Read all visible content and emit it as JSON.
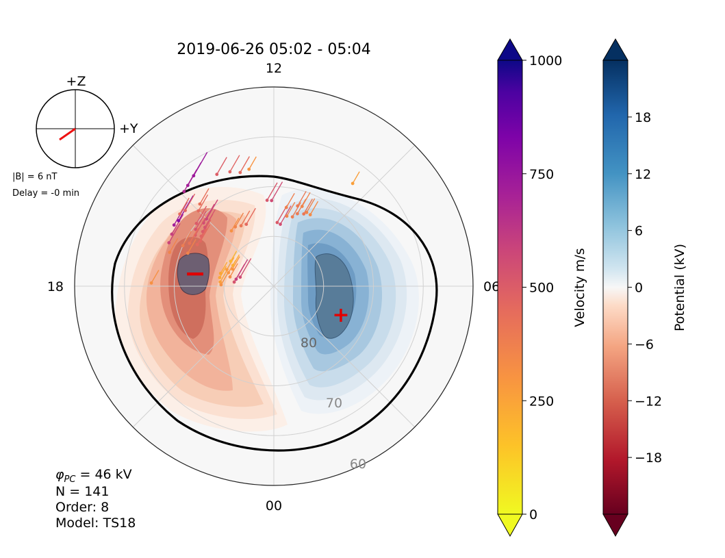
{
  "chart_data": {
    "type": "polar-convection-map",
    "title": "2019-06-26 05:02 - 05:04",
    "mlt_labels": {
      "top": "12",
      "left": "18",
      "right": "06",
      "bottom": "00"
    },
    "latitude_labels": [
      "80",
      "70",
      "60"
    ],
    "latitude_rings": [
      80,
      70,
      60
    ],
    "imf_clock": {
      "z_label": "+Z",
      "y_label": "+Y",
      "b_text": "|B| = 6 nT",
      "delay_text": "Delay = -0 min"
    },
    "stats": {
      "phi_prefix": "φ",
      "phi_sub": "PC",
      "phi_value": " = 46 kV",
      "n": "N = 141",
      "order": "Order: 8",
      "model": "Model: TS18"
    },
    "potential_min_marker": "−",
    "potential_max_marker": "+",
    "velocity_colorbar": {
      "label": "Velocity m/s",
      "ticks": [
        "0",
        "250",
        "500",
        "750",
        "1000"
      ],
      "range": [
        0,
        1000
      ],
      "colormap": "plasma_r"
    },
    "potential_colorbar": {
      "label": "Potential (kV)",
      "ticks": [
        "−18",
        "−12",
        "−6",
        "0",
        "6",
        "12",
        "18"
      ],
      "range": [
        -24,
        24
      ],
      "colormap": "RdBu"
    },
    "vectors": [
      {
        "mlt": 16.5,
        "lat": 67.2,
        "v": 500
      },
      {
        "mlt": 16.2,
        "lat": 67.0,
        "v": 520
      },
      {
        "mlt": 15.9,
        "lat": 66.5,
        "v": 640
      },
      {
        "mlt": 15.7,
        "lat": 66.8,
        "v": 720
      },
      {
        "mlt": 15.5,
        "lat": 66.2,
        "v": 380
      },
      {
        "mlt": 15.3,
        "lat": 66.6,
        "v": 400
      },
      {
        "mlt": 16.8,
        "lat": 68.0,
        "v": 300
      },
      {
        "mlt": 17.1,
        "lat": 79.0,
        "v": 200
      },
      {
        "mlt": 17.4,
        "lat": 79.0,
        "v": 200
      },
      {
        "mlt": 17.7,
        "lat": 79.2,
        "v": 220
      },
      {
        "mlt": 17.9,
        "lat": 79.4,
        "v": 260
      },
      {
        "mlt": 16.7,
        "lat": 80.0,
        "v": 230
      },
      {
        "mlt": 16.9,
        "lat": 80.5,
        "v": 250
      },
      {
        "mlt": 17.2,
        "lat": 81.0,
        "v": 280
      },
      {
        "mlt": 16.5,
        "lat": 81.0,
        "v": 250
      },
      {
        "mlt": 16.2,
        "lat": 80.8,
        "v": 180
      },
      {
        "mlt": 16.0,
        "lat": 80.0,
        "v": 160
      },
      {
        "mlt": 17.6,
        "lat": 82.0,
        "v": 450
      },
      {
        "mlt": 17.3,
        "lat": 82.3,
        "v": 520
      },
      {
        "mlt": 17.0,
        "lat": 83.0,
        "v": 480
      },
      {
        "mlt": 16.1,
        "lat": 72.5,
        "v": 380
      },
      {
        "mlt": 15.9,
        "lat": 72.7,
        "v": 390
      },
      {
        "mlt": 15.7,
        "lat": 72.3,
        "v": 400
      },
      {
        "mlt": 15.5,
        "lat": 72.0,
        "v": 430
      },
      {
        "mlt": 15.3,
        "lat": 71.8,
        "v": 450
      },
      {
        "mlt": 15.2,
        "lat": 71.0,
        "v": 480
      },
      {
        "mlt": 15.0,
        "lat": 70.9,
        "v": 500
      },
      {
        "mlt": 15.6,
        "lat": 70.6,
        "v": 460
      },
      {
        "mlt": 15.4,
        "lat": 70.0,
        "v": 430
      },
      {
        "mlt": 15.8,
        "lat": 71.2,
        "v": 420
      },
      {
        "mlt": 16.2,
        "lat": 71.0,
        "v": 350
      },
      {
        "mlt": 16.4,
        "lat": 70.0,
        "v": 320
      },
      {
        "mlt": 16.6,
        "lat": 71.5,
        "v": 300
      },
      {
        "mlt": 15.0,
        "lat": 68.6,
        "v": 380
      },
      {
        "mlt": 14.8,
        "lat": 67.8,
        "v": 360
      },
      {
        "mlt": 14.5,
        "lat": 76.0,
        "v": 260
      },
      {
        "mlt": 14.2,
        "lat": 75.8,
        "v": 300
      },
      {
        "mlt": 13.9,
        "lat": 76.2,
        "v": 340
      },
      {
        "mlt": 13.6,
        "lat": 76.4,
        "v": 380
      },
      {
        "mlt": 17.9,
        "lat": 65.4,
        "v": 260
      },
      {
        "mlt": 14.9,
        "lat": 63.8,
        "v": 600
      },
      {
        "mlt": 14.7,
        "lat": 63.4,
        "v": 640
      },
      {
        "mlt": 14.4,
        "lat": 62.6,
        "v": 660
      },
      {
        "mlt": 13.8,
        "lat": 64.8,
        "v": 420
      },
      {
        "mlt": 13.4,
        "lat": 65.4,
        "v": 400
      },
      {
        "mlt": 13.1,
        "lat": 66.2,
        "v": 380
      },
      {
        "mlt": 12.8,
        "lat": 66.0,
        "v": 250
      },
      {
        "mlt": 9.5,
        "lat": 64.0,
        "v": 220
      },
      {
        "mlt": 11.8,
        "lat": 77.2,
        "v": 430
      },
      {
        "mlt": 11.6,
        "lat": 77.5,
        "v": 470
      },
      {
        "mlt": 11.3,
        "lat": 75.7,
        "v": 300
      },
      {
        "mlt": 11.0,
        "lat": 75.6,
        "v": 320
      },
      {
        "mlt": 10.8,
        "lat": 74.7,
        "v": 330
      },
      {
        "mlt": 10.5,
        "lat": 74.3,
        "v": 340
      },
      {
        "mlt": 10.4,
        "lat": 73.8,
        "v": 300
      },
      {
        "mlt": 10.2,
        "lat": 73.9,
        "v": 280
      },
      {
        "mlt": 10.7,
        "lat": 73.0,
        "v": 300
      },
      {
        "mlt": 10.9,
        "lat": 73.2,
        "v": 330
      },
      {
        "mlt": 11.4,
        "lat": 74.0,
        "v": 310
      },
      {
        "mlt": 12.3,
        "lat": 72.7,
        "v": 440
      },
      {
        "mlt": 12.1,
        "lat": 72.8,
        "v": 480
      }
    ]
  }
}
